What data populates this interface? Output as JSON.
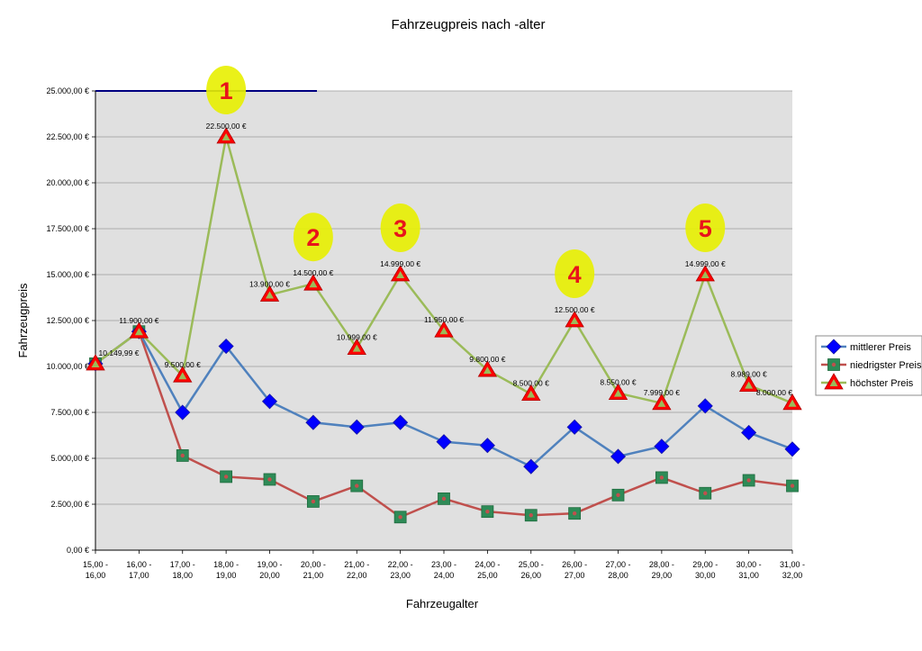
{
  "chart_data": {
    "type": "line",
    "title": "Fahrzeugpreis nach -alter",
    "xlabel": "Fahrzeugalter",
    "ylabel": "Fahrzeugpreis",
    "categories": [
      [
        "15,00 -",
        "16,00"
      ],
      [
        "16,00 -",
        "17,00"
      ],
      [
        "17,00 -",
        "18,00"
      ],
      [
        "18,00 -",
        "19,00"
      ],
      [
        "19,00 -",
        "20,00"
      ],
      [
        "20,00 -",
        "21,00"
      ],
      [
        "21,00 -",
        "22,00"
      ],
      [
        "22,00 -",
        "23,00"
      ],
      [
        "23,00 -",
        "24,00"
      ],
      [
        "24,00 -",
        "25,00"
      ],
      [
        "25,00 -",
        "26,00"
      ],
      [
        "26,00 -",
        "27,00"
      ],
      [
        "27,00 -",
        "28,00"
      ],
      [
        "28,00 -",
        "29,00"
      ],
      [
        "29,00 -",
        "30,00"
      ],
      [
        "30,00 -",
        "31,00"
      ],
      [
        "31,00 -",
        "32,00"
      ]
    ],
    "ylim": [
      0,
      25000
    ],
    "yticks": [
      {
        "value": 0,
        "label": "0,00 €"
      },
      {
        "value": 2500,
        "label": "2.500,00 €"
      },
      {
        "value": 5000,
        "label": "5.000,00 €"
      },
      {
        "value": 7500,
        "label": "7.500,00 €"
      },
      {
        "value": 10000,
        "label": "10.000,00 €"
      },
      {
        "value": 12500,
        "label": "12.500,00 €"
      },
      {
        "value": 15000,
        "label": "15.000,00 €"
      },
      {
        "value": 17500,
        "label": "17.500,00 €"
      },
      {
        "value": 20000,
        "label": "20.000,00 €"
      },
      {
        "value": 22500,
        "label": "22.500,00 €"
      },
      {
        "value": 25000,
        "label": "25.000,00 €"
      }
    ],
    "grid": true,
    "legend_position": "right",
    "series": [
      {
        "name": "mittlerer Preis",
        "color": "#4f81bd",
        "marker": "diamond",
        "marker_color": "#0000ff",
        "values": [
          10149.99,
          11900,
          7500,
          11100,
          8100,
          6950,
          6700,
          6950,
          5900,
          5700,
          4550,
          6700,
          5100,
          5650,
          7850,
          6400,
          5500
        ]
      },
      {
        "name": "niedrigster Preis",
        "color": "#c0504d",
        "marker": "square",
        "marker_color": "#2e8b57",
        "values": [
          10149.99,
          11900,
          5150,
          4000,
          3850,
          2650,
          3500,
          1800,
          2800,
          2100,
          1900,
          2000,
          3000,
          3950,
          3100,
          3800,
          3500
        ]
      },
      {
        "name": "höchster Preis",
        "color": "#9bbb59",
        "marker": "triangle",
        "marker_color": "#ff0000",
        "values": [
          10149.99,
          11900,
          9500,
          22500,
          13900,
          14500,
          10999,
          14999,
          11950,
          9800,
          8500,
          12500,
          8550,
          7999,
          14999,
          8989,
          8000
        ],
        "data_labels": [
          "10.149,99 €",
          "11.900,00 €",
          "9.500,00 €",
          "22.500,00 €",
          "13.900,00 €",
          "14.500,00 €",
          "10.999,00 €",
          "14.999,00 €",
          "11.950,00 €",
          "9.800,00 €",
          "8.500,00 €",
          "12.500,00 €",
          "8.550,00 €",
          "7.999,00 €",
          "14.999,00 €",
          "8.989,00 €",
          "8.000,00 €"
        ]
      }
    ],
    "annotations": [
      {
        "text": "1",
        "category_index": 3
      },
      {
        "text": "2",
        "category_index": 5
      },
      {
        "text": "3",
        "category_index": 7
      },
      {
        "text": "4",
        "category_index": 11
      },
      {
        "text": "5",
        "category_index": 14
      }
    ],
    "colors": {
      "plot_background": "#e0e0e0",
      "gridline": "#9a9a9a",
      "highlight": "#e8f000",
      "callout_text": "#e8141b",
      "top_bar": "#000080"
    }
  }
}
